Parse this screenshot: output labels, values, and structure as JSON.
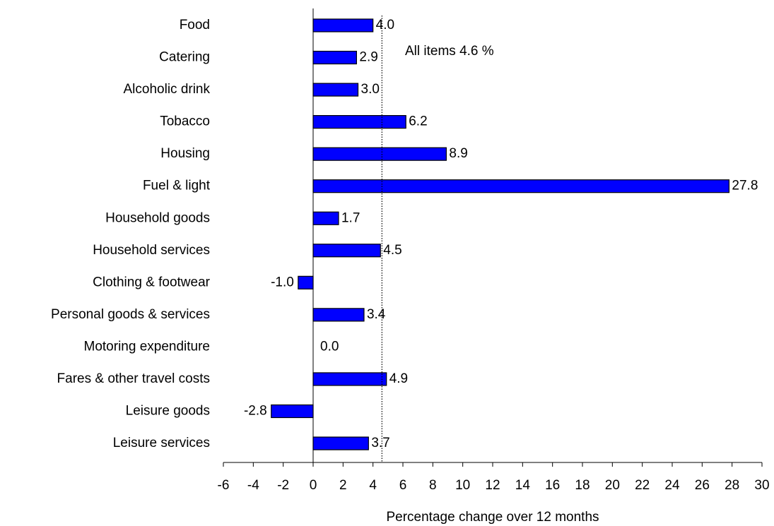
{
  "chart_data": {
    "type": "bar",
    "orientation": "horizontal",
    "categories": [
      "Food",
      "Catering",
      "Alcoholic drink",
      "Tobacco",
      "Housing",
      "Fuel & light",
      "Household goods",
      "Household services",
      "Clothing & footwear",
      "Personal goods & services",
      "Motoring expenditure",
      "Fares & other travel costs",
      "Leisure goods",
      "Leisure services"
    ],
    "values": [
      4.0,
      2.9,
      3.0,
      6.2,
      8.9,
      27.8,
      1.7,
      4.5,
      -1.0,
      3.4,
      0.0,
      4.9,
      -2.8,
      3.7
    ],
    "value_labels": [
      "4.0",
      "2.9",
      "3.0",
      "6.2",
      "8.9",
      "27.8",
      "1.7",
      "4.5",
      "-1.0",
      "3.4",
      "0.0",
      "4.9",
      "-2.8",
      "3.7"
    ],
    "color": "#0000ff",
    "xlabel": "Percentage change over 12 months",
    "xlim": [
      -6,
      30
    ],
    "xticks": [
      -6,
      -4,
      -2,
      0,
      2,
      4,
      6,
      8,
      10,
      12,
      14,
      16,
      18,
      20,
      22,
      24,
      26,
      28,
      30
    ],
    "reference_line": {
      "value": 4.6,
      "label": "All items 4.6 %"
    },
    "grid": false
  }
}
